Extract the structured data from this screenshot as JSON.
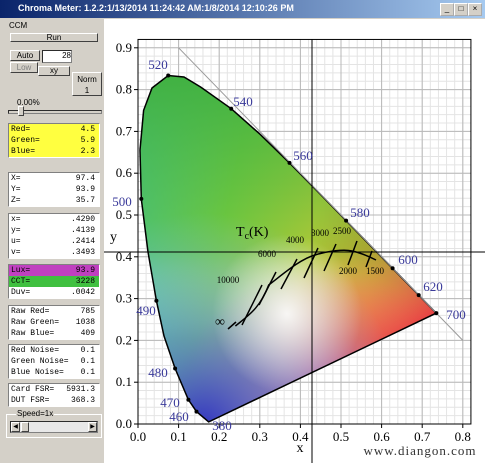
{
  "window": {
    "title": "Chroma Meter: 1.2.2:1/13/2014 11:24:42 AM:1/8/2014 12:10:26 PM",
    "menu": "CCM"
  },
  "controls": {
    "run": "Run",
    "auto": "Auto",
    "gain": "28",
    "low": "Low",
    "mode": "xy",
    "norm": "Norm",
    "norm_value": "1",
    "percent": "0.00%",
    "speed": "Speed=1x"
  },
  "readings": [
    [
      {
        "label": "Red=",
        "value": "4.5"
      },
      {
        "label": "Green=",
        "value": "5.9"
      },
      {
        "label": "Blue=",
        "value": "2.3"
      }
    ],
    [
      {
        "label": "X=",
        "value": "97.4"
      },
      {
        "label": "Y=",
        "value": "93.9"
      },
      {
        "label": "Z=",
        "value": "35.7"
      }
    ],
    [
      {
        "label": "x=",
        "value": ".4290"
      },
      {
        "label": "y=",
        "value": ".4139"
      },
      {
        "label": "u=",
        "value": ".2414"
      },
      {
        "label": "v=",
        "value": ".3493"
      }
    ],
    [
      {
        "label": "Lux=",
        "value": "93.9"
      },
      {
        "label": "CCT=",
        "value": "3228"
      },
      {
        "label": "Duv=",
        "value": ".0042"
      }
    ],
    [
      {
        "label": "Raw Red=",
        "value": "785"
      },
      {
        "label": "Raw Green=",
        "value": "1038"
      },
      {
        "label": "Raw Blue=",
        "value": "409"
      }
    ],
    [
      {
        "label": "Red Noise=",
        "value": "0.1"
      },
      {
        "label": "Green Noise=",
        "value": "0.1"
      },
      {
        "label": "Blue Noise=",
        "value": "0.1"
      }
    ],
    [
      {
        "label": "Card FSR=",
        "value": "5931.3"
      },
      {
        "label": "DUT FSR=",
        "value": "368.3"
      }
    ]
  ],
  "chart_data": {
    "type": "chromaticity",
    "xlabel": "x",
    "ylabel": "y",
    "xlim": [
      0,
      0.82
    ],
    "ylim": [
      0,
      0.92
    ],
    "xticks": [
      {
        "value": 0,
        "label": "0.0"
      },
      0.1,
      0.2,
      0.3,
      0.4,
      0.5,
      0.6,
      0.7,
      0.8
    ],
    "yticks": [
      {
        "value": 0,
        "label": "0.0"
      },
      0.1,
      0.2,
      0.3,
      0.4,
      0.5,
      0.6,
      0.7,
      0.8,
      0.9
    ],
    "grid": true,
    "wavelength_labels": [
      "520",
      "540",
      "560",
      "580",
      "600",
      "620",
      "700",
      "500",
      "490",
      "480",
      "470",
      "460",
      "380"
    ],
    "cct_labels": [
      "10000",
      "6000",
      "4000",
      "3000",
      "2500",
      "2000",
      "1500"
    ],
    "isotherm_title": {
      "main": "T",
      "sub": "c",
      "unit": "(K)"
    },
    "infinity": "∞",
    "watermark": "www.diangon.com"
  }
}
